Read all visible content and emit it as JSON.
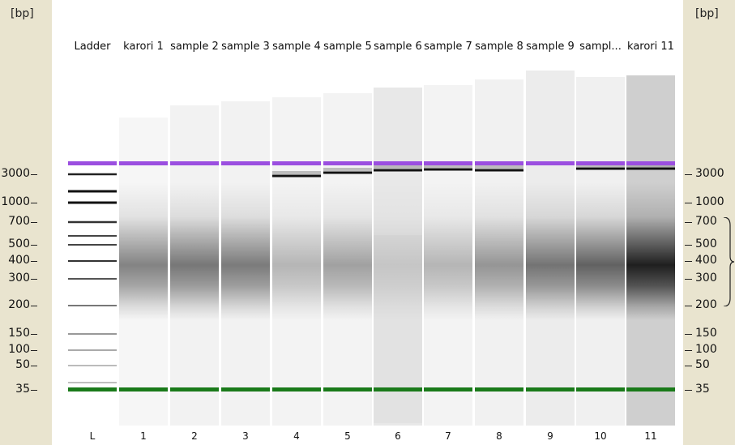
{
  "unit_label": "[bp]",
  "lanes": [
    {
      "header": "Ladder",
      "number": "L"
    },
    {
      "header": "karori 1",
      "number": "1"
    },
    {
      "header": "sample 2",
      "number": "2"
    },
    {
      "header": "sample 3",
      "number": "3"
    },
    {
      "header": "sample 4",
      "number": "4"
    },
    {
      "header": "sample 5",
      "number": "5"
    },
    {
      "header": "sample 6",
      "number": "6"
    },
    {
      "header": "sample 7",
      "number": "7"
    },
    {
      "header": "sample 8",
      "number": "8"
    },
    {
      "header": "sample 9",
      "number": "9"
    },
    {
      "header": "sampl...",
      "number": "10"
    },
    {
      "header": "karori 11",
      "number": "11"
    }
  ],
  "size_ticks": [
    "3000",
    "1000",
    "700",
    "500",
    "400",
    "300",
    "200",
    "150",
    "100",
    "50",
    "35"
  ],
  "colors": {
    "sidebar": "#e9e4cf",
    "upper_marker": "#9b4fe0",
    "lower_marker": "#1a7a1a"
  }
}
